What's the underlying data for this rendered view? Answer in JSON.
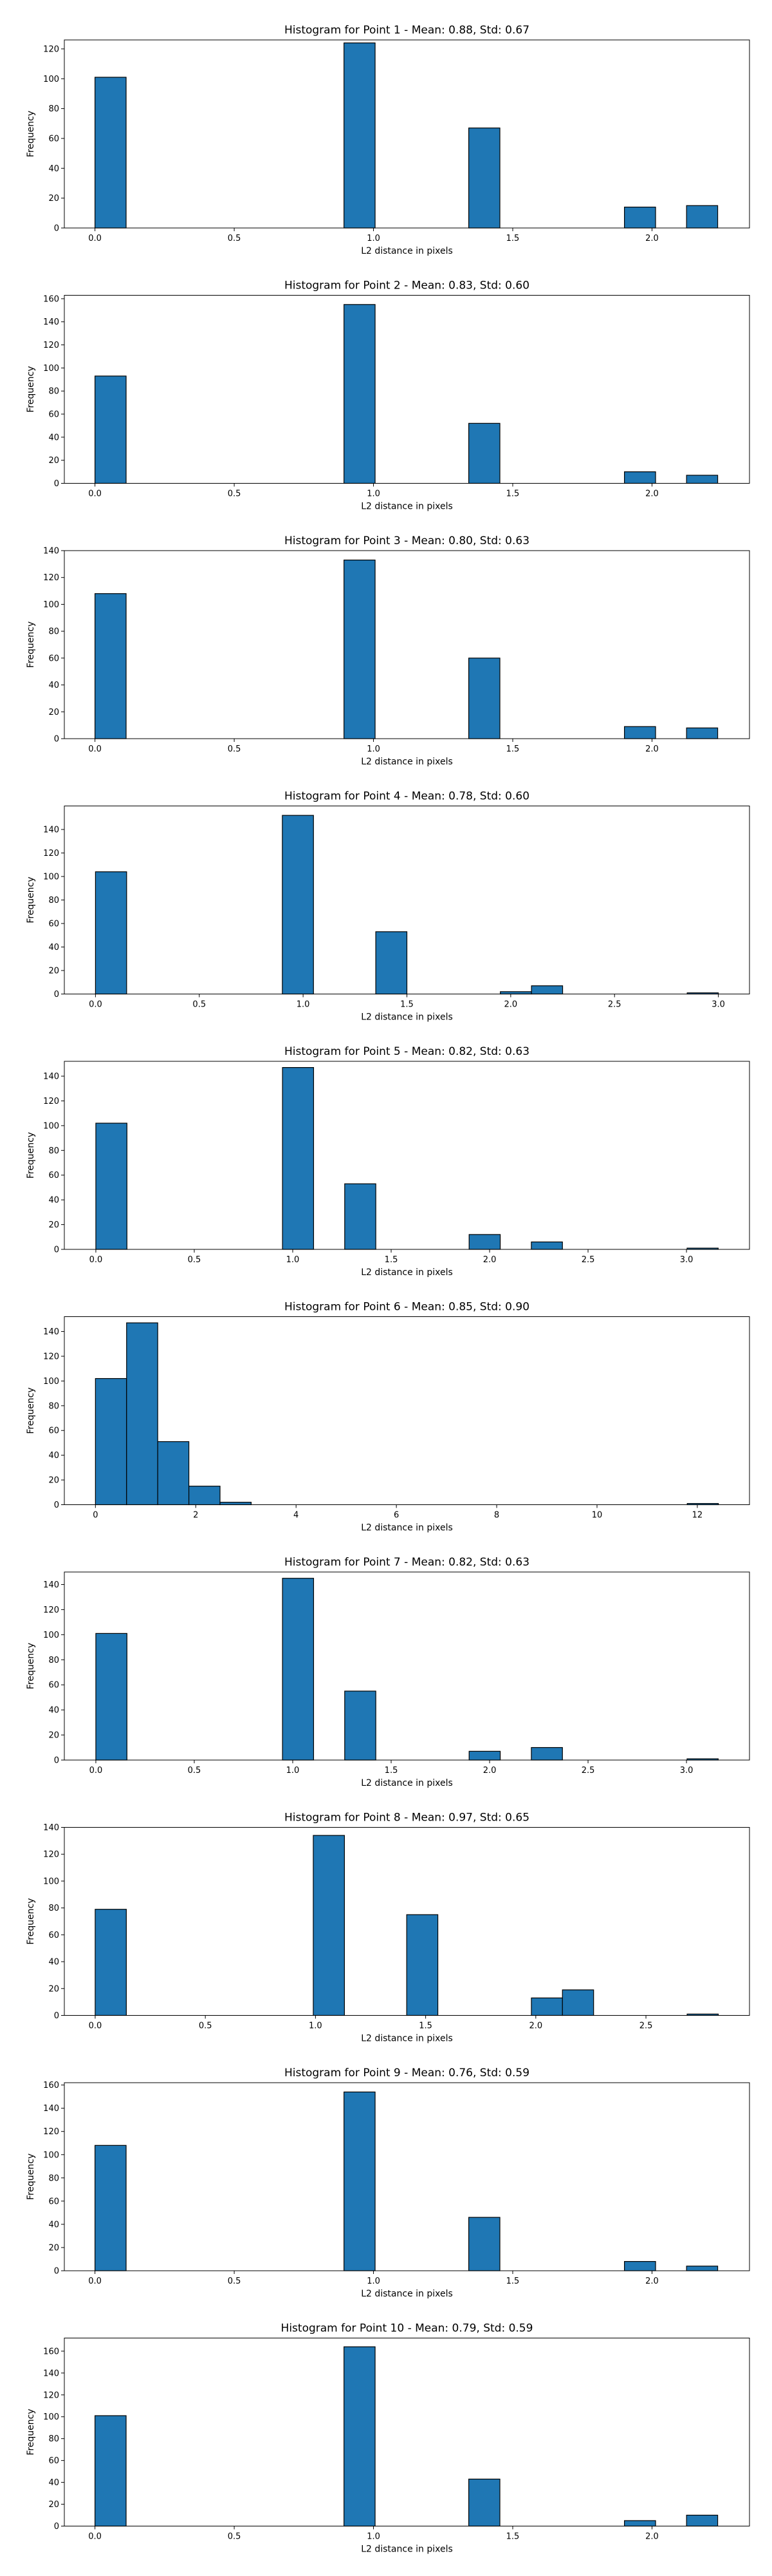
{
  "figure": {
    "background": "#ffffff",
    "bar_fill": "#1f77b4",
    "bar_edge": "#000000"
  },
  "chart_data": [
    {
      "type": "bar",
      "title": "Histogram for Point 1 - Mean: 0.88, Std: 0.67",
      "xlabel": "L2 distance in pixels",
      "ylabel": "Frequency",
      "xlim": [
        -0.11,
        2.35
      ],
      "ylim": [
        0,
        126
      ],
      "xticks": [
        0.0,
        0.5,
        1.0,
        1.5,
        2.0
      ],
      "xtick_labels": [
        "0.0",
        "0.5",
        "1.0",
        "1.5",
        "2.0"
      ],
      "yticks": [
        0,
        20,
        40,
        60,
        80,
        100,
        120
      ],
      "ytick_labels": [
        "0",
        "20",
        "40",
        "60",
        "80",
        "100",
        "120"
      ],
      "bar_width": 0.1118,
      "bin_starts": [
        0.0,
        0.894,
        1.342,
        1.901,
        2.124
      ],
      "values": [
        101,
        124,
        67,
        14,
        15
      ],
      "grid": false,
      "legend": "none"
    },
    {
      "type": "bar",
      "title": "Histogram for Point 2 - Mean: 0.83, Std: 0.60",
      "xlabel": "L2 distance in pixels",
      "ylabel": "Frequency",
      "xlim": [
        -0.11,
        2.35
      ],
      "ylim": [
        0,
        163
      ],
      "xticks": [
        0.0,
        0.5,
        1.0,
        1.5,
        2.0
      ],
      "xtick_labels": [
        "0.0",
        "0.5",
        "1.0",
        "1.5",
        "2.0"
      ],
      "yticks": [
        0,
        20,
        40,
        60,
        80,
        100,
        120,
        140,
        160
      ],
      "ytick_labels": [
        "0",
        "20",
        "40",
        "60",
        "80",
        "100",
        "120",
        "140",
        "160"
      ],
      "bar_width": 0.1118,
      "bin_starts": [
        0.0,
        0.894,
        1.342,
        1.901,
        2.124
      ],
      "values": [
        93,
        155,
        52,
        10,
        7
      ],
      "grid": false,
      "legend": "none"
    },
    {
      "type": "bar",
      "title": "Histogram for Point 3 - Mean: 0.80, Std: 0.63",
      "xlabel": "L2 distance in pixels",
      "ylabel": "Frequency",
      "xlim": [
        -0.11,
        2.35
      ],
      "ylim": [
        0,
        140
      ],
      "xticks": [
        0.0,
        0.5,
        1.0,
        1.5,
        2.0
      ],
      "xtick_labels": [
        "0.0",
        "0.5",
        "1.0",
        "1.5",
        "2.0"
      ],
      "yticks": [
        0,
        20,
        40,
        60,
        80,
        100,
        120,
        140
      ],
      "ytick_labels": [
        "0",
        "20",
        "40",
        "60",
        "80",
        "100",
        "120",
        "140"
      ],
      "bar_width": 0.1118,
      "bin_starts": [
        0.0,
        0.894,
        1.342,
        1.901,
        2.124
      ],
      "values": [
        108,
        133,
        60,
        9,
        8
      ],
      "grid": false,
      "legend": "none"
    },
    {
      "type": "bar",
      "title": "Histogram for Point 4 - Mean: 0.78, Std: 0.60",
      "xlabel": "L2 distance in pixels",
      "ylabel": "Frequency",
      "xlim": [
        -0.15,
        3.15
      ],
      "ylim": [
        0,
        160
      ],
      "xticks": [
        0.0,
        0.5,
        1.0,
        1.5,
        2.0,
        2.5,
        3.0
      ],
      "xtick_labels": [
        "0.0",
        "0.5",
        "1.0",
        "1.5",
        "2.0",
        "2.5",
        "3.0"
      ],
      "yticks": [
        0,
        20,
        40,
        60,
        80,
        100,
        120,
        140
      ],
      "ytick_labels": [
        "0",
        "20",
        "40",
        "60",
        "80",
        "100",
        "120",
        "140"
      ],
      "bar_width": 0.15,
      "bin_starts": [
        0.0,
        0.9,
        1.35,
        1.95,
        2.1,
        2.85
      ],
      "values": [
        104,
        152,
        53,
        2,
        7,
        1
      ],
      "grid": false,
      "legend": "none"
    },
    {
      "type": "bar",
      "title": "Histogram for Point 5 - Mean: 0.82, Std: 0.63",
      "xlabel": "L2 distance in pixels",
      "ylabel": "Frequency",
      "xlim": [
        -0.16,
        3.32
      ],
      "ylim": [
        0,
        152
      ],
      "xticks": [
        0.0,
        0.5,
        1.0,
        1.5,
        2.0,
        2.5,
        3.0
      ],
      "xtick_labels": [
        "0.0",
        "0.5",
        "1.0",
        "1.5",
        "2.0",
        "2.5",
        "3.0"
      ],
      "yticks": [
        0,
        20,
        40,
        60,
        80,
        100,
        120,
        140
      ],
      "ytick_labels": [
        "0",
        "20",
        "40",
        "60",
        "80",
        "100",
        "120",
        "140"
      ],
      "bar_width": 0.158,
      "bin_starts": [
        0.0,
        0.948,
        1.264,
        1.896,
        2.212,
        3.003
      ],
      "values": [
        102,
        147,
        53,
        12,
        6,
        1
      ],
      "grid": false,
      "legend": "none"
    },
    {
      "type": "bar",
      "title": "Histogram for Point 6 - Mean: 0.85, Std: 0.90",
      "xlabel": "L2 distance in pixels",
      "ylabel": "Frequency",
      "xlim": [
        -0.62,
        13.04
      ],
      "ylim": [
        0,
        152
      ],
      "xticks": [
        0,
        2,
        4,
        6,
        8,
        10,
        12
      ],
      "xtick_labels": [
        "0",
        "2",
        "4",
        "6",
        "8",
        "10",
        "12"
      ],
      "yticks": [
        0,
        20,
        40,
        60,
        80,
        100,
        120,
        140
      ],
      "ytick_labels": [
        "0",
        "20",
        "40",
        "60",
        "80",
        "100",
        "120",
        "140"
      ],
      "bar_width": 0.621,
      "bin_starts": [
        0.0,
        0.621,
        1.242,
        1.863,
        2.484,
        11.799
      ],
      "values": [
        102,
        147,
        51,
        15,
        2,
        1
      ],
      "grid": false,
      "legend": "none"
    },
    {
      "type": "bar",
      "title": "Histogram for Point 7 - Mean: 0.82, Std: 0.63",
      "xlabel": "L2 distance in pixels",
      "ylabel": "Frequency",
      "xlim": [
        -0.16,
        3.32
      ],
      "ylim": [
        0,
        150
      ],
      "xticks": [
        0.0,
        0.5,
        1.0,
        1.5,
        2.0,
        2.5,
        3.0
      ],
      "xtick_labels": [
        "0.0",
        "0.5",
        "1.0",
        "1.5",
        "2.0",
        "2.5",
        "3.0"
      ],
      "yticks": [
        0,
        20,
        40,
        60,
        80,
        100,
        120,
        140
      ],
      "ytick_labels": [
        "0",
        "20",
        "40",
        "60",
        "80",
        "100",
        "120",
        "140"
      ],
      "bar_width": 0.158,
      "bin_starts": [
        0.0,
        0.948,
        1.264,
        1.896,
        2.212,
        3.003
      ],
      "values": [
        101,
        145,
        55,
        7,
        10,
        1
      ],
      "grid": false,
      "legend": "none"
    },
    {
      "type": "bar",
      "title": "Histogram for Point 8 - Mean: 0.97, Std: 0.65",
      "xlabel": "L2 distance in pixels",
      "ylabel": "Frequency",
      "xlim": [
        -0.14,
        2.97
      ],
      "ylim": [
        0,
        140
      ],
      "xticks": [
        0.0,
        0.5,
        1.0,
        1.5,
        2.0,
        2.5
      ],
      "xtick_labels": [
        "0.0",
        "0.5",
        "1.0",
        "1.5",
        "2.0",
        "2.5"
      ],
      "yticks": [
        0,
        20,
        40,
        60,
        80,
        100,
        120,
        140
      ],
      "ytick_labels": [
        "0",
        "20",
        "40",
        "60",
        "80",
        "100",
        "120",
        "140"
      ],
      "bar_width": 0.1414,
      "bin_starts": [
        0.0,
        0.99,
        1.414,
        1.98,
        2.121,
        2.687
      ],
      "values": [
        79,
        134,
        75,
        13,
        19,
        1
      ],
      "grid": false,
      "legend": "none"
    },
    {
      "type": "bar",
      "title": "Histogram for Point 9 - Mean: 0.76, Std: 0.59",
      "xlabel": "L2 distance in pixels",
      "ylabel": "Frequency",
      "xlim": [
        -0.11,
        2.35
      ],
      "ylim": [
        0,
        162
      ],
      "xticks": [
        0.0,
        0.5,
        1.0,
        1.5,
        2.0
      ],
      "xtick_labels": [
        "0.0",
        "0.5",
        "1.0",
        "1.5",
        "2.0"
      ],
      "yticks": [
        0,
        20,
        40,
        60,
        80,
        100,
        120,
        140,
        160
      ],
      "ytick_labels": [
        "0",
        "20",
        "40",
        "60",
        "80",
        "100",
        "120",
        "140",
        "160"
      ],
      "bar_width": 0.1118,
      "bin_starts": [
        0.0,
        0.894,
        1.342,
        1.901,
        2.124
      ],
      "values": [
        108,
        154,
        46,
        8,
        4
      ],
      "grid": false,
      "legend": "none"
    },
    {
      "type": "bar",
      "title": "Histogram for Point 10 - Mean: 0.79, Std: 0.59",
      "xlabel": "L2 distance in pixels",
      "ylabel": "Frequency",
      "xlim": [
        -0.11,
        2.35
      ],
      "ylim": [
        0,
        172
      ],
      "xticks": [
        0.0,
        0.5,
        1.0,
        1.5,
        2.0
      ],
      "xtick_labels": [
        "0.0",
        "0.5",
        "1.0",
        "1.5",
        "2.0"
      ],
      "yticks": [
        0,
        20,
        40,
        60,
        80,
        100,
        120,
        140,
        160
      ],
      "ytick_labels": [
        "0",
        "20",
        "40",
        "60",
        "80",
        "100",
        "120",
        "140",
        "160"
      ],
      "bar_width": 0.1118,
      "bin_starts": [
        0.0,
        0.894,
        1.342,
        1.901,
        2.124
      ],
      "values": [
        101,
        164,
        43,
        5,
        10
      ],
      "grid": false,
      "legend": "none"
    }
  ]
}
